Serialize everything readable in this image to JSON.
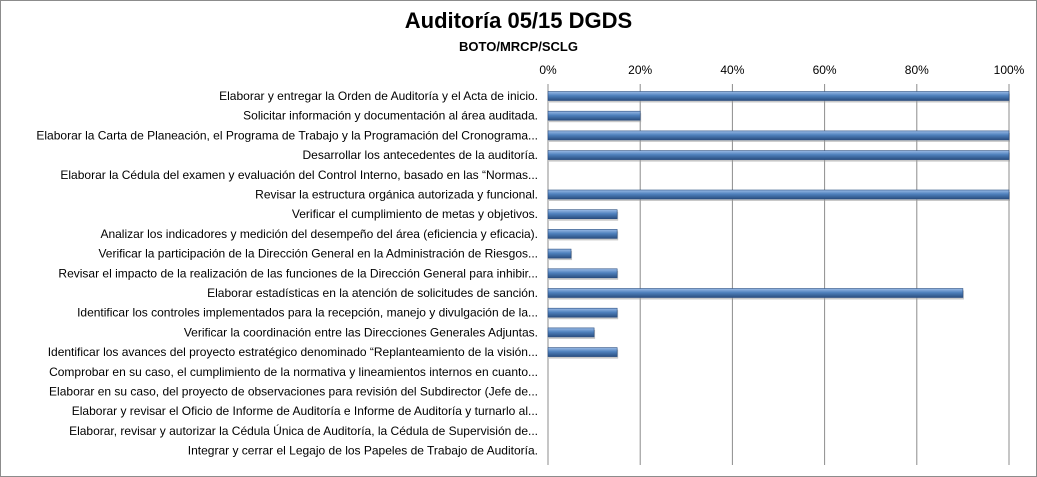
{
  "chart_data": {
    "type": "bar",
    "orientation": "horizontal",
    "title": "Auditoría 05/15 DGDS",
    "subtitle": "BOTO/MRCP/SCLG",
    "x_axis_position": "top",
    "xlim": [
      0,
      100
    ],
    "x_ticks": [
      "0%",
      "20%",
      "40%",
      "60%",
      "80%",
      "100%"
    ],
    "x_tick_values": [
      0,
      20,
      40,
      60,
      80,
      100
    ],
    "grid": true,
    "legend": "none",
    "bar_color": "#4f81bd",
    "bar_highlight": "#9bbbe6",
    "bar_shadow": "#2a4e80",
    "categories": [
      "Elaborar y entregar la Orden de Auditoría y el Acta de inicio.",
      "Solicitar información y documentación al área auditada.",
      "Elaborar la Carta de Planeación, el Programa de Trabajo y la Programación del Cronograma...",
      "Desarrollar los antecedentes de la auditoría.",
      "Elaborar la Cédula del examen y evaluación del Control Interno, basado en las “Normas...",
      "Revisar la estructura orgánica autorizada y funcional.",
      "Verificar el cumplimiento de metas y objetivos.",
      "Analizar los indicadores y medición del desempeño del área (eficiencia y eficacia).",
      "Verificar la participación de la Dirección General en la Administración de Riesgos...",
      "Revisar el impacto de la realización de las funciones de la Dirección General para inhibir...",
      "Elaborar estadísticas en la atención de solicitudes de sanción.",
      "Identificar los controles implementados para la recepción, manejo y divulgación de la...",
      "Verificar la coordinación entre las Direcciones Generales Adjuntas.",
      "Identificar los avances del proyecto estratégico denominado “Replanteamiento de la visión...",
      "Comprobar en su caso, el cumplimiento de la normativa y lineamientos internos en cuanto...",
      "Elaborar en su caso, del proyecto de observaciones para revisión del Subdirector (Jefe de...",
      "Elaborar y revisar el Oficio de Informe de Auditoría e Informe de Auditoría y turnarlo al...",
      "Elaborar, revisar y autorizar la Cédula Única de Auditoría, la Cédula de Supervisión de...",
      "Integrar y cerrar el Legajo de los Papeles de Trabajo de Auditoría."
    ],
    "values": [
      100,
      20,
      100,
      100,
      0,
      100,
      15,
      15,
      5,
      15,
      90,
      15,
      10,
      15,
      0,
      0,
      0,
      0,
      0
    ]
  }
}
